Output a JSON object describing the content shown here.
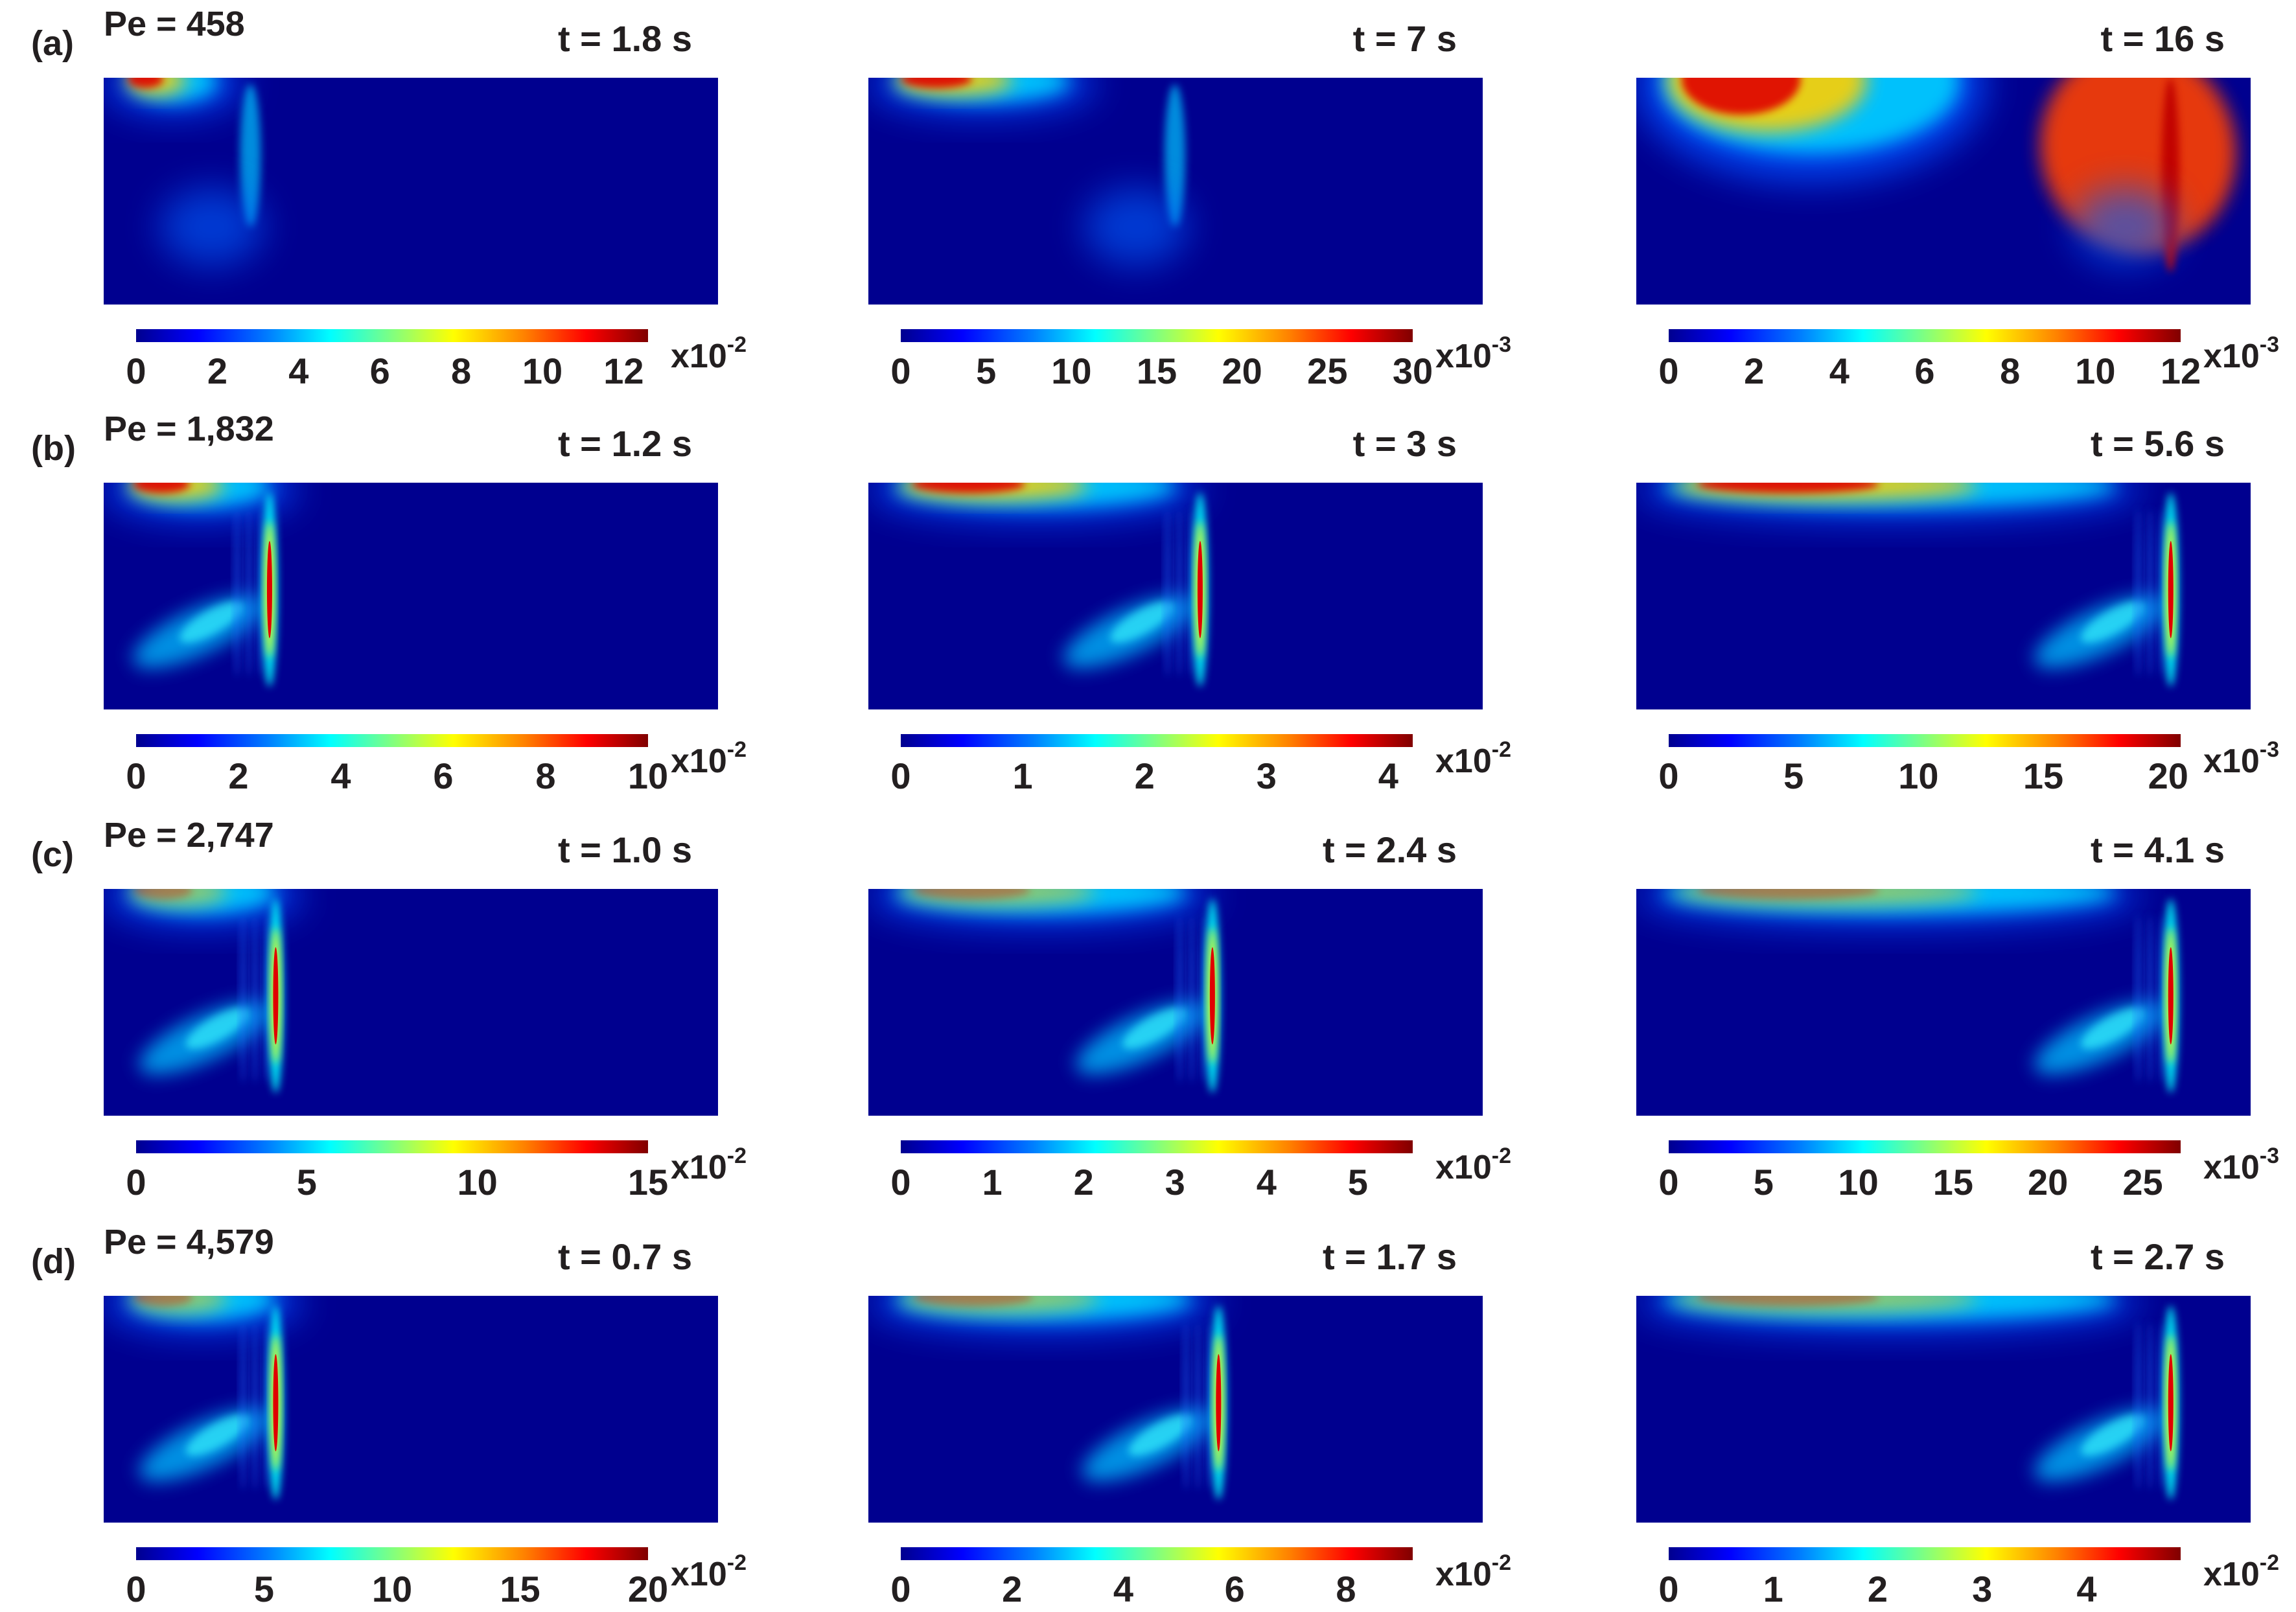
{
  "rows": [
    {
      "label": "(a)",
      "pe": "Pe = 458",
      "panels": [
        {
          "time": "t = 1.8 s",
          "ticks": [
            "0",
            "2",
            "4",
            "6",
            "8",
            "10",
            "12"
          ],
          "unit_base": "x10",
          "unit_exp": "-2",
          "scale_max": 12.6
        },
        {
          "time": "t = 7 s",
          "ticks": [
            "0",
            "5",
            "10",
            "15",
            "20",
            "25",
            "30"
          ],
          "unit_base": "x10",
          "unit_exp": "-3",
          "scale_max": 30
        },
        {
          "time": "t = 16 s",
          "ticks": [
            "0",
            "2",
            "4",
            "6",
            "8",
            "10",
            "12"
          ],
          "unit_base": "x10",
          "unit_exp": "-3",
          "scale_max": 12
        }
      ]
    },
    {
      "label": "(b)",
      "pe": "Pe = 1,832",
      "panels": [
        {
          "time": "t = 1.2 s",
          "ticks": [
            "0",
            "2",
            "4",
            "6",
            "8",
            "10"
          ],
          "unit_base": "x10",
          "unit_exp": "-2",
          "scale_max": 10
        },
        {
          "time": "t = 3 s",
          "ticks": [
            "0",
            "1",
            "2",
            "3",
            "4"
          ],
          "unit_base": "x10",
          "unit_exp": "-2",
          "scale_max": 4.2
        },
        {
          "time": "t = 5.6 s",
          "ticks": [
            "0",
            "5",
            "10",
            "15",
            "20"
          ],
          "unit_base": "x10",
          "unit_exp": "-3",
          "scale_max": 20.5
        }
      ]
    },
    {
      "label": "(c)",
      "pe": "Pe = 2,747",
      "panels": [
        {
          "time": "t = 1.0 s",
          "ticks": [
            "0",
            "5",
            "10",
            "15"
          ],
          "unit_base": "x10",
          "unit_exp": "-2",
          "scale_max": 15
        },
        {
          "time": "t = 2.4 s",
          "ticks": [
            "0",
            "1",
            "2",
            "3",
            "4",
            "5"
          ],
          "unit_base": "x10",
          "unit_exp": "-2",
          "scale_max": 5.6
        },
        {
          "time": "t = 4.1 s",
          "ticks": [
            "0",
            "5",
            "10",
            "15",
            "20",
            "25"
          ],
          "unit_base": "x10",
          "unit_exp": "-3",
          "scale_max": 27
        }
      ]
    },
    {
      "label": "(d)",
      "pe": "Pe = 4,579",
      "panels": [
        {
          "time": "t = 0.7 s",
          "ticks": [
            "0",
            "5",
            "10",
            "15",
            "20"
          ],
          "unit_base": "x10",
          "unit_exp": "-2",
          "scale_max": 20
        },
        {
          "time": "t = 1.7 s",
          "ticks": [
            "0",
            "2",
            "4",
            "6",
            "8"
          ],
          "unit_base": "x10",
          "unit_exp": "-2",
          "scale_max": 9.2
        },
        {
          "time": "t = 2.7 s",
          "ticks": [
            "0",
            "1",
            "2",
            "3",
            "4"
          ],
          "unit_base": "x10",
          "unit_exp": "-2",
          "scale_max": 4.9
        }
      ]
    }
  ]
}
